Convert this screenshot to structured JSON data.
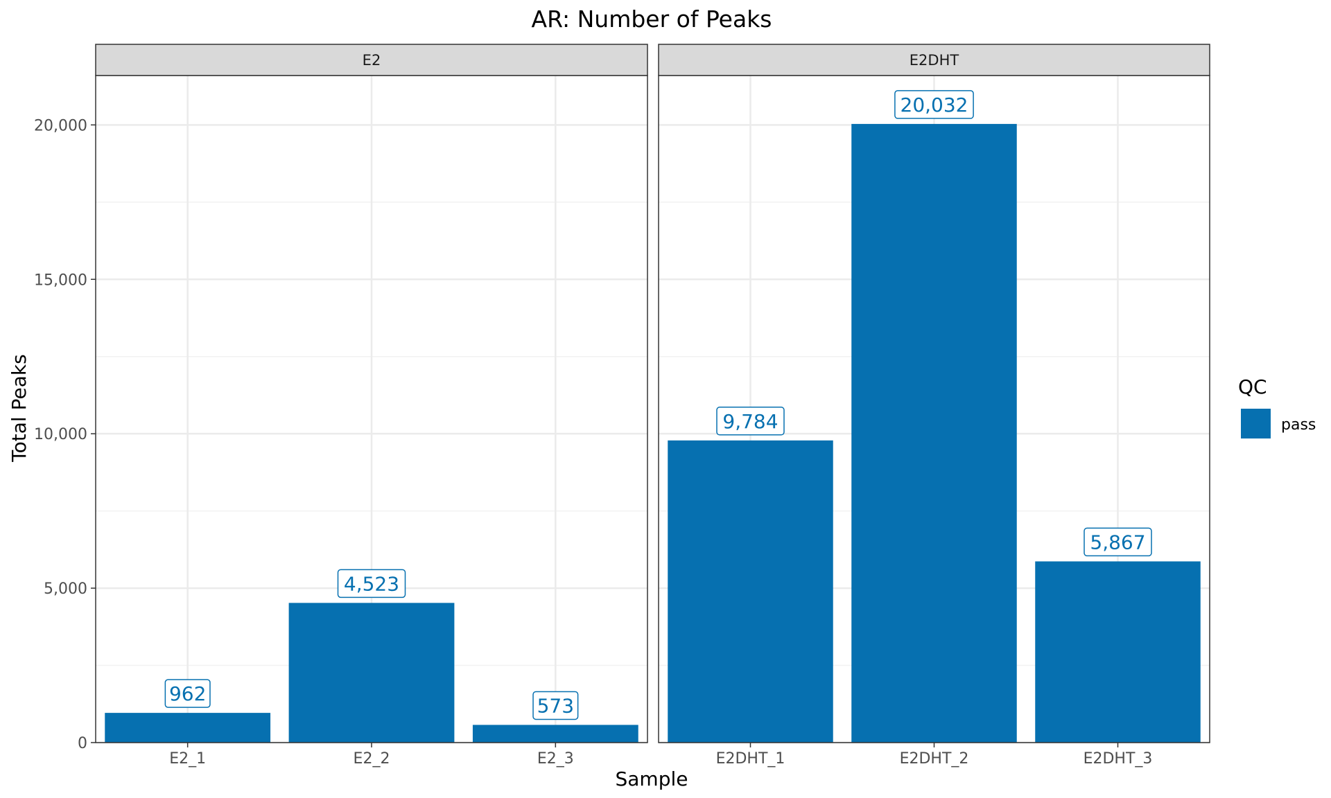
{
  "chart_data": {
    "type": "bar",
    "title": "AR: Number of Peaks",
    "xlabel": "Sample",
    "ylabel": "Total Peaks",
    "ylim": [
      0,
      21600
    ],
    "yticks": [
      0,
      5000,
      10000,
      15000,
      20000
    ],
    "ytick_labels": [
      "0",
      "5,000",
      "10,000",
      "15,000",
      "20,000"
    ],
    "grid": true,
    "facets": [
      {
        "label": "E2",
        "categories": [
          "E2_1",
          "E2_2",
          "E2_3"
        ],
        "values": [
          962,
          4523,
          573
        ],
        "data_labels": [
          "962",
          "4,523",
          "573"
        ]
      },
      {
        "label": "E2DHT",
        "categories": [
          "E2DHT_1",
          "E2DHT_2",
          "E2DHT_3"
        ],
        "values": [
          9784,
          20032,
          5867
        ],
        "data_labels": [
          "9,784",
          "20,032",
          "5,867"
        ]
      }
    ],
    "legend": {
      "title": "QC",
      "position": "right",
      "items": [
        {
          "label": "pass",
          "color": "#0670B0"
        }
      ]
    },
    "colors": {
      "bar": "#0670B0",
      "strip_fill": "#D9D9D9",
      "grid_major": "#EBEBEB",
      "grid_minor": "#F2F2F2",
      "border": "#333333"
    }
  }
}
